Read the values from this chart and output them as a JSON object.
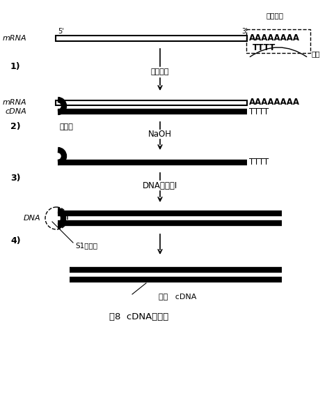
{
  "title": "图8  cDNA的合成",
  "bg_color": "#ffffff",
  "line_color": "#000000",
  "step1_label": "1)",
  "step2_label": "2)",
  "step3_label": "3)",
  "step4_label": "4)",
  "mrna_label": "mRNA",
  "cdna_label": "cDNA",
  "dna_label": "DNA",
  "five_prime": "5'",
  "three_prime": "3'",
  "poly_a_region": "聚腺苷区",
  "poly_a": "AAAAAAAA",
  "tttt1": "TTTT",
  "primer_label": "引物",
  "enzyme1": "反转录酶",
  "poly_a2": "AAAAAAAA",
  "tttt2": "TTTT",
  "hairpin": "发卡环",
  "naoh": "NaOH",
  "tttt3": "TTTT",
  "dna_pol": "DNA聚合酶Ⅰ",
  "s1_label": "S1核酸酶",
  "double_strand": "双链   cDNA",
  "fig_label": "图8",
  "cdna_synthesis": "cDNA的合成"
}
